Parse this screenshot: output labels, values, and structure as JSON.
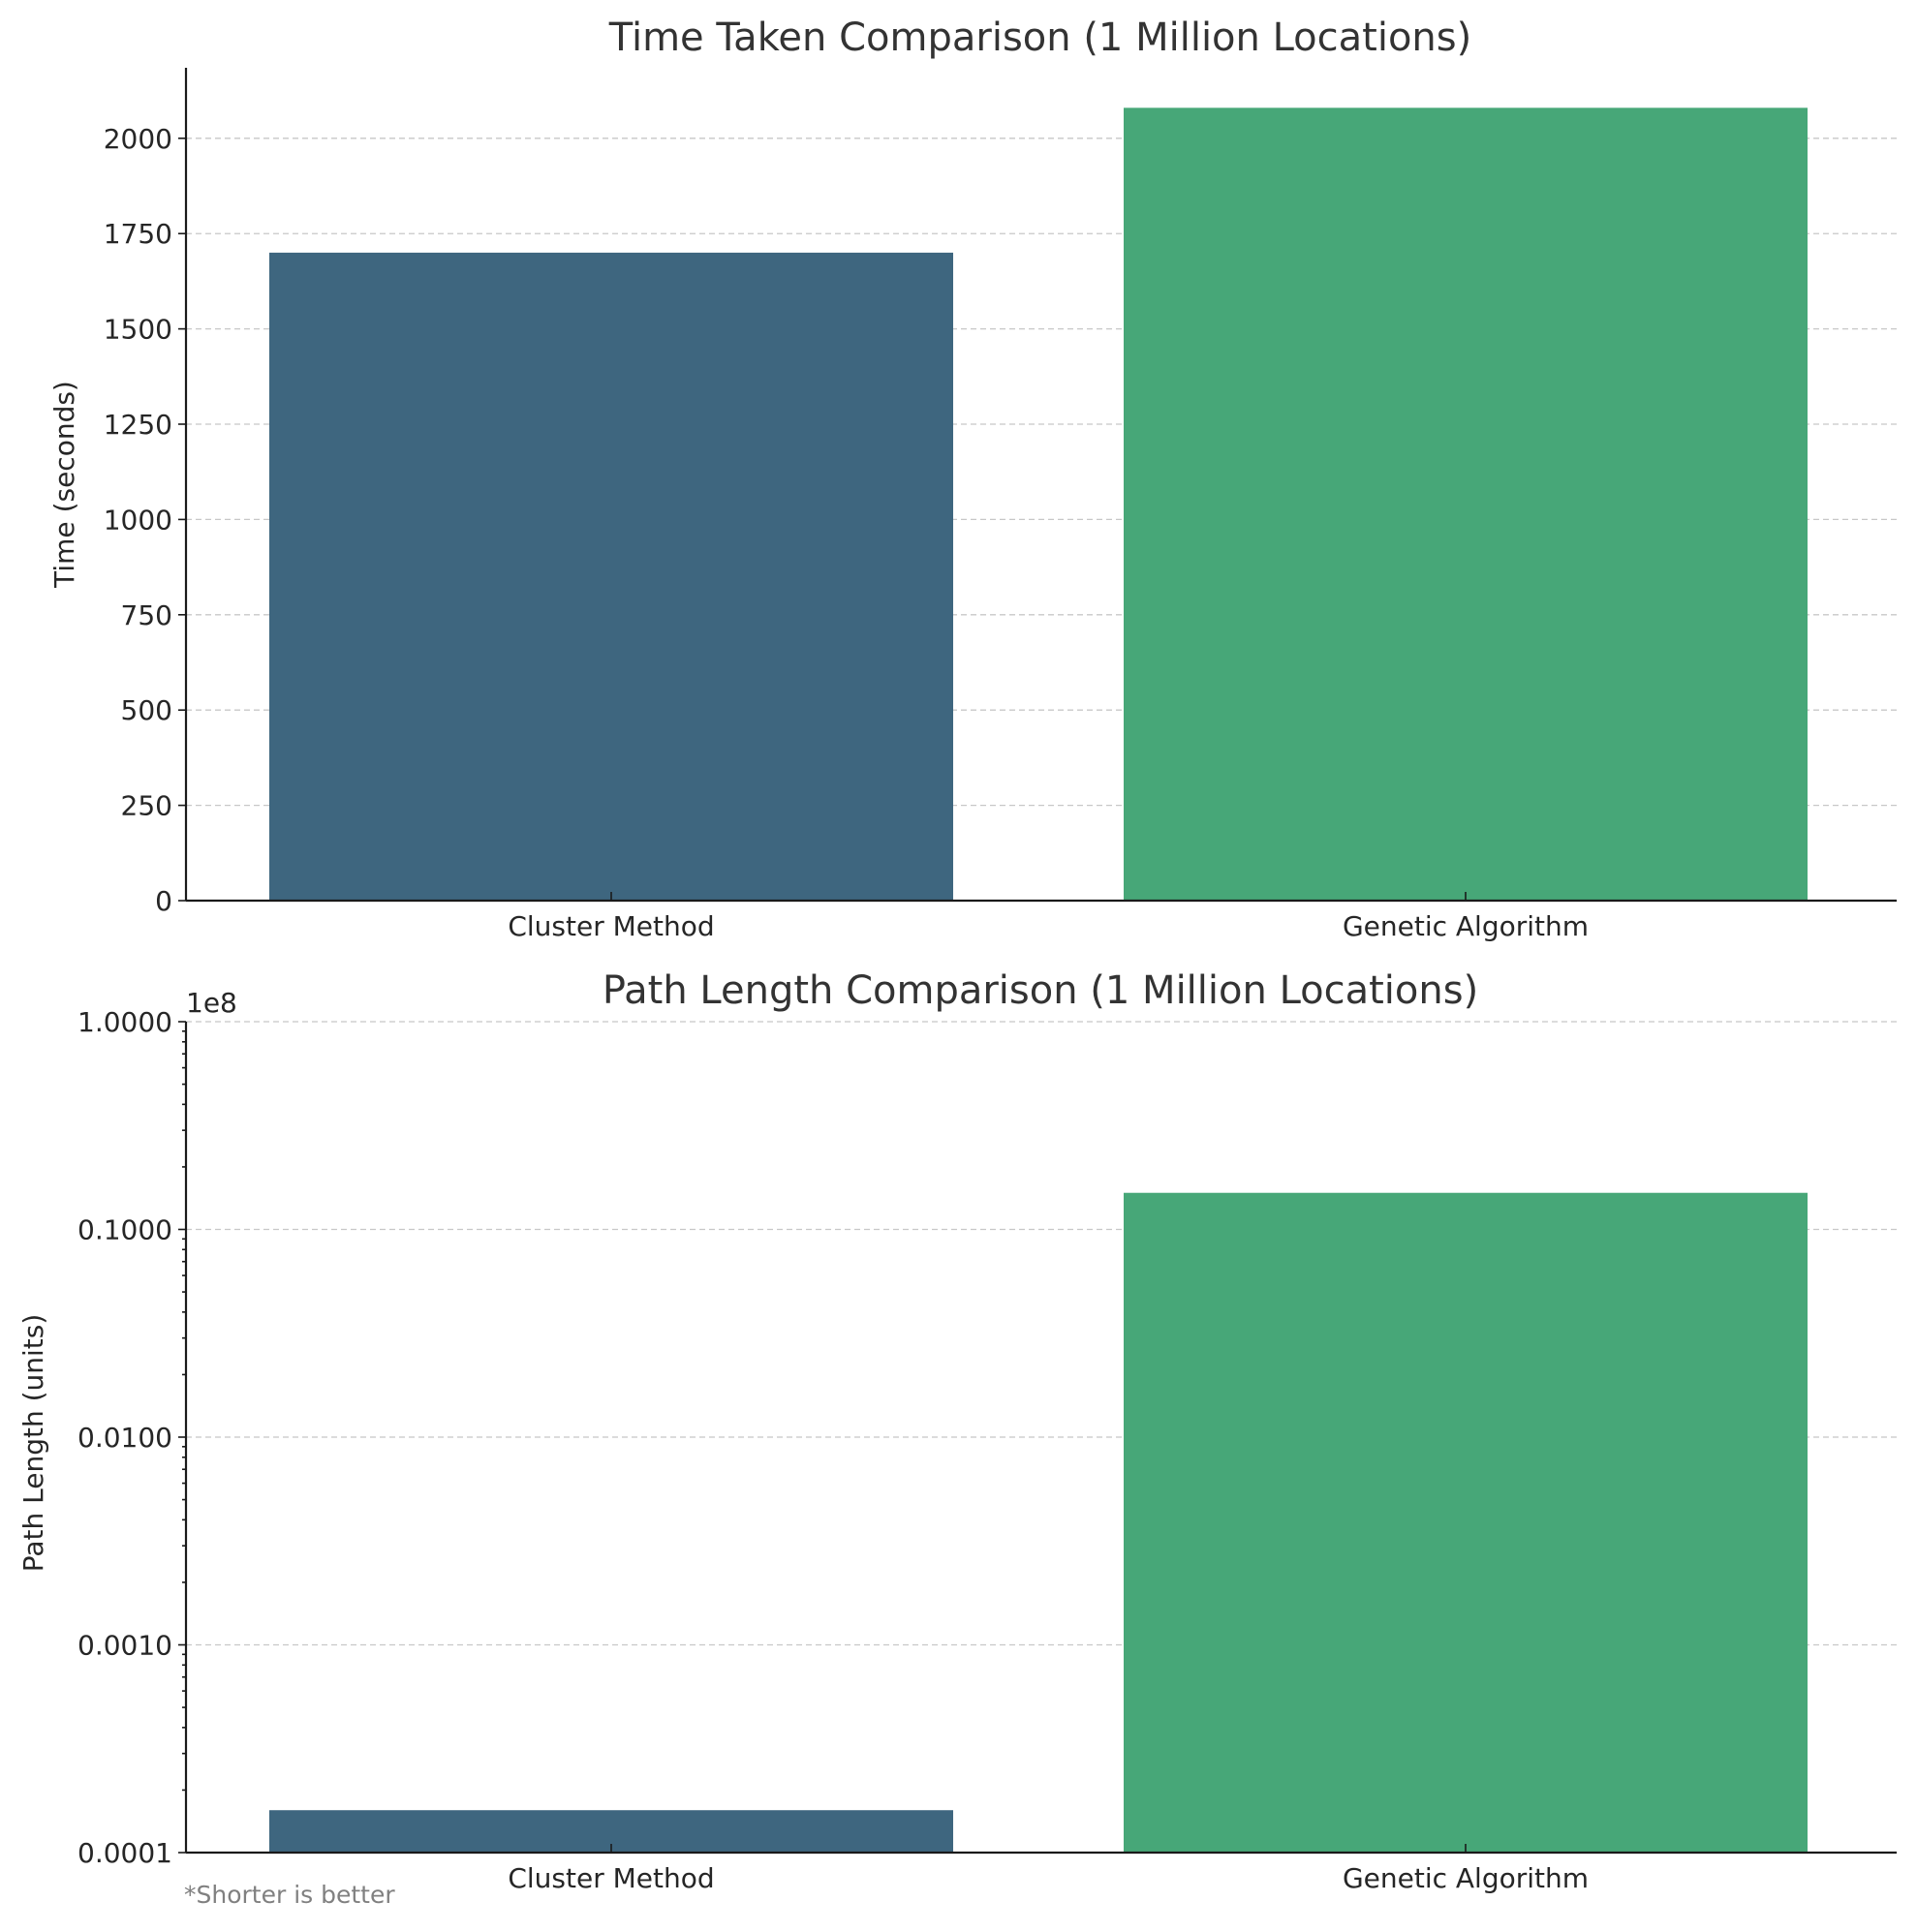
{
  "chart_data": [
    {
      "type": "bar",
      "title": "Time Taken Comparison (1 Million Locations)",
      "xlabel": "",
      "ylabel": "Time (seconds)",
      "categories": [
        "Cluster Method",
        "Genetic Algorithm"
      ],
      "values": [
        1700,
        2080
      ],
      "colors": [
        "#3e667f",
        "#47a778"
      ],
      "ylim": [
        0,
        2185
      ],
      "yscale": "linear",
      "yticks": [
        0,
        250,
        500,
        750,
        1000,
        1250,
        1500,
        1750,
        2000
      ],
      "ytick_labels": [
        "0",
        "250",
        "500",
        "750",
        "1000",
        "1250",
        "1500",
        "1750",
        "2000"
      ],
      "grid": "y-dashed"
    },
    {
      "type": "bar",
      "title": "Path Length Comparison (1 Million Locations)",
      "xlabel": "",
      "ylabel": "Path Length (units)",
      "categories": [
        "Cluster Method",
        "Genetic Algorithm"
      ],
      "values": [
        0.00016,
        0.15
      ],
      "value_multiplier_label": "1e8",
      "colors": [
        "#3e667f",
        "#47a778"
      ],
      "ylim": [
        0.0001,
        1.0
      ],
      "yscale": "log",
      "yticks": [
        0.0001,
        0.001,
        0.01,
        0.1,
        1.0
      ],
      "ytick_labels": [
        "0.0001",
        "0.0010",
        "0.0100",
        "0.1000",
        "1.0000"
      ],
      "grid": "y-dashed",
      "footnote": "*Shorter is better"
    }
  ]
}
